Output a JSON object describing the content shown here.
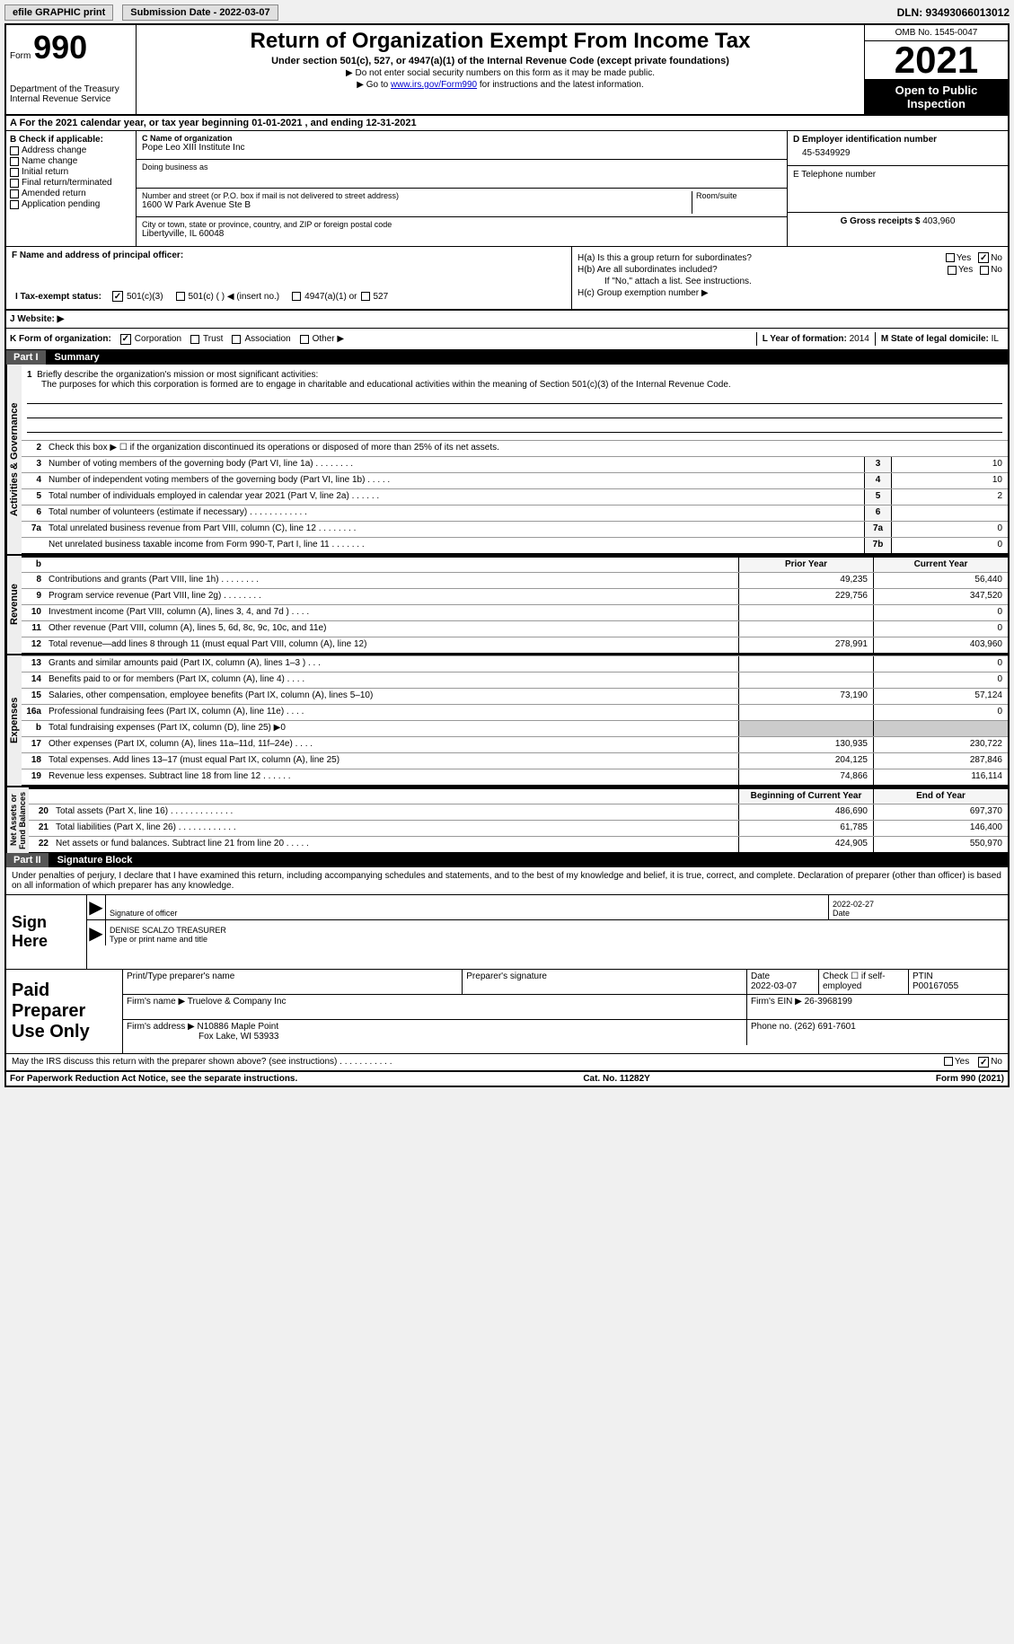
{
  "topbar": {
    "efile": "efile GRAPHIC print",
    "sub_date_label": "Submission Date - 2022-03-07",
    "dln": "DLN: 93493066013012"
  },
  "header": {
    "form_label": "Form",
    "form_num": "990",
    "dept": "Department of the Treasury",
    "irs": "Internal Revenue Service",
    "title": "Return of Organization Exempt From Income Tax",
    "subtitle": "Under section 501(c), 527, or 4947(a)(1) of the Internal Revenue Code (except private foundations)",
    "note1": "▶ Do not enter social security numbers on this form as it may be made public.",
    "note2_pre": "▶ Go to ",
    "note2_link": "www.irs.gov/Form990",
    "note2_post": " for instructions and the latest information.",
    "omb": "OMB No. 1545-0047",
    "year": "2021",
    "inspection": "Open to Public Inspection"
  },
  "sectionA": "A For the 2021 calendar year, or tax year beginning 01-01-2021   , and ending 12-31-2021",
  "sectionB": {
    "label": "B Check if applicable:",
    "items": [
      "Address change",
      "Name change",
      "Initial return",
      "Final return/terminated",
      "Amended return",
      "Application pending"
    ]
  },
  "sectionC": {
    "name_label": "C Name of organization",
    "name": "Pope Leo XIII Institute Inc",
    "dba": "Doing business as",
    "addr_label": "Number and street (or P.O. box if mail is not delivered to street address)",
    "addr": "1600 W Park Avenue Ste B",
    "room": "Room/suite",
    "city_label": "City or town, state or province, country, and ZIP or foreign postal code",
    "city": "Libertyville, IL  60048"
  },
  "sectionD": {
    "ein_label": "D Employer identification number",
    "ein": "45-5349929",
    "phone_label": "E Telephone number",
    "gross_label": "G Gross receipts $",
    "gross": "403,960"
  },
  "sectionF": "F  Name and address of principal officer:",
  "sectionH": {
    "ha": "H(a)  Is this a group return for subordinates?",
    "hb": "H(b)  Are all subordinates included?",
    "hb_note": "If \"No,\" attach a list. See instructions.",
    "hc": "H(c)  Group exemption number ▶",
    "yes": "Yes",
    "no": "No"
  },
  "sectionI": {
    "label": "I  Tax-exempt status:",
    "opt1": "501(c)(3)",
    "opt2": "501(c) (  ) ◀ (insert no.)",
    "opt3": "4947(a)(1) or",
    "opt4": "527"
  },
  "sectionJ": "J  Website: ▶",
  "sectionK": {
    "label": "K Form of organization:",
    "corp": "Corporation",
    "trust": "Trust",
    "assoc": "Association",
    "other": "Other ▶",
    "year_label": "L Year of formation:",
    "year": "2014",
    "state_label": "M State of legal domicile:",
    "state": "IL"
  },
  "part1": {
    "label": "Part I",
    "title": "Summary",
    "mission_label": "Briefly describe the organization's mission or most significant activities:",
    "mission": "The purposes for which this corporation is formed are to engage in charitable and educational activities within the meaning of Section 501(c)(3) of the Internal Revenue Code.",
    "line2": "Check this box ▶ ☐ if the organization discontinued its operations or disposed of more than 25% of its net assets.",
    "governance_lines": [
      {
        "n": "3",
        "d": "Number of voting members of the governing body (Part VI, line 1a)   .   .   .   .   .   .   .   .",
        "box": "3",
        "v": "10"
      },
      {
        "n": "4",
        "d": "Number of independent voting members of the governing body (Part VI, line 1b)   .   .   .   .   .",
        "box": "4",
        "v": "10"
      },
      {
        "n": "5",
        "d": "Total number of individuals employed in calendar year 2021 (Part V, line 2a)   .   .   .   .   .   .",
        "box": "5",
        "v": "2"
      },
      {
        "n": "6",
        "d": "Total number of volunteers (estimate if necessary)   .   .   .   .   .   .   .   .   .   .   .   .",
        "box": "6",
        "v": ""
      },
      {
        "n": "7a",
        "d": "Total unrelated business revenue from Part VIII, column (C), line 12   .   .   .   .   .   .   .   .",
        "box": "7a",
        "v": "0"
      },
      {
        "n": "",
        "d": "Net unrelated business taxable income from Form 990-T, Part I, line 11   .   .   .   .   .   .   .",
        "box": "7b",
        "v": "0"
      }
    ],
    "prior_label": "Prior Year",
    "current_label": "Current Year",
    "revenue_lines": [
      {
        "n": "8",
        "d": "Contributions and grants (Part VIII, line 1h)   .   .   .   .   .   .   .   .",
        "p": "49,235",
        "c": "56,440"
      },
      {
        "n": "9",
        "d": "Program service revenue (Part VIII, line 2g)   .   .   .   .   .   .   .   .",
        "p": "229,756",
        "c": "347,520"
      },
      {
        "n": "10",
        "d": "Investment income (Part VIII, column (A), lines 3, 4, and 7d )   .   .   .   .",
        "p": "",
        "c": "0"
      },
      {
        "n": "11",
        "d": "Other revenue (Part VIII, column (A), lines 5, 6d, 8c, 9c, 10c, and 11e)",
        "p": "",
        "c": "0"
      },
      {
        "n": "12",
        "d": "Total revenue—add lines 8 through 11 (must equal Part VIII, column (A), line 12)",
        "p": "278,991",
        "c": "403,960"
      }
    ],
    "expense_lines": [
      {
        "n": "13",
        "d": "Grants and similar amounts paid (Part IX, column (A), lines 1–3 )   .   .   .",
        "p": "",
        "c": "0"
      },
      {
        "n": "14",
        "d": "Benefits paid to or for members (Part IX, column (A), line 4)   .   .   .   .",
        "p": "",
        "c": "0"
      },
      {
        "n": "15",
        "d": "Salaries, other compensation, employee benefits (Part IX, column (A), lines 5–10)",
        "p": "73,190",
        "c": "57,124"
      },
      {
        "n": "16a",
        "d": "Professional fundraising fees (Part IX, column (A), line 11e)   .   .   .   .",
        "p": "",
        "c": "0"
      },
      {
        "n": "b",
        "d": "Total fundraising expenses (Part IX, column (D), line 25) ▶0",
        "p": "gray",
        "c": "gray"
      },
      {
        "n": "17",
        "d": "Other expenses (Part IX, column (A), lines 11a–11d, 11f–24e)   .   .   .   .",
        "p": "130,935",
        "c": "230,722"
      },
      {
        "n": "18",
        "d": "Total expenses. Add lines 13–17 (must equal Part IX, column (A), line 25)",
        "p": "204,125",
        "c": "287,846"
      },
      {
        "n": "19",
        "d": "Revenue less expenses. Subtract line 18 from line 12   .   .   .   .   .   .",
        "p": "74,866",
        "c": "116,114"
      }
    ],
    "begin_label": "Beginning of Current Year",
    "end_label": "End of Year",
    "net_lines": [
      {
        "n": "20",
        "d": "Total assets (Part X, line 16)   .   .   .   .   .   .   .   .   .   .   .   .   .",
        "p": "486,690",
        "c": "697,370"
      },
      {
        "n": "21",
        "d": "Total liabilities (Part X, line 26)   .   .   .   .   .   .   .   .   .   .   .   .",
        "p": "61,785",
        "c": "146,400"
      },
      {
        "n": "22",
        "d": "Net assets or fund balances. Subtract line 21 from line 20   .   .   .   .   .",
        "p": "424,905",
        "c": "550,970"
      }
    ]
  },
  "part2": {
    "label": "Part II",
    "title": "Signature Block",
    "penalty": "Under penalties of perjury, I declare that I have examined this return, including accompanying schedules and statements, and to the best of my knowledge and belief, it is true, correct, and complete. Declaration of preparer (other than officer) is based on all information of which preparer has any knowledge.",
    "sign_here": "Sign Here",
    "sig_date": "2022-02-27",
    "sig_label": "Signature of officer",
    "date_label": "Date",
    "officer_name": "DENISE SCALZO  TREASURER",
    "name_label": "Type or print name and title",
    "paid_label": "Paid Preparer Use Only",
    "prep_name_label": "Print/Type preparer's name",
    "prep_sig_label": "Preparer's signature",
    "prep_date_label": "Date",
    "prep_date": "2022-03-07",
    "check_self": "Check ☐ if self-employed",
    "ptin_label": "PTIN",
    "ptin": "P00167055",
    "firm_name_label": "Firm's name    ▶",
    "firm_name": "Truelove & Company Inc",
    "firm_ein_label": "Firm's EIN ▶",
    "firm_ein": "26-3968199",
    "firm_addr_label": "Firm's address ▶",
    "firm_addr1": "N10886 Maple Point",
    "firm_addr2": "Fox Lake, WI  53933",
    "phone_label": "Phone no.",
    "phone": "(262) 691-7601",
    "discuss": "May the IRS discuss this return with the preparer shown above? (see instructions)   .   .   .   .   .   .   .   .   .   .   .",
    "discuss_yes": "Yes",
    "discuss_no": "No"
  },
  "footer": {
    "left": "For Paperwork Reduction Act Notice, see the separate instructions.",
    "center": "Cat. No. 11282Y",
    "right": "Form 990 (2021)"
  }
}
